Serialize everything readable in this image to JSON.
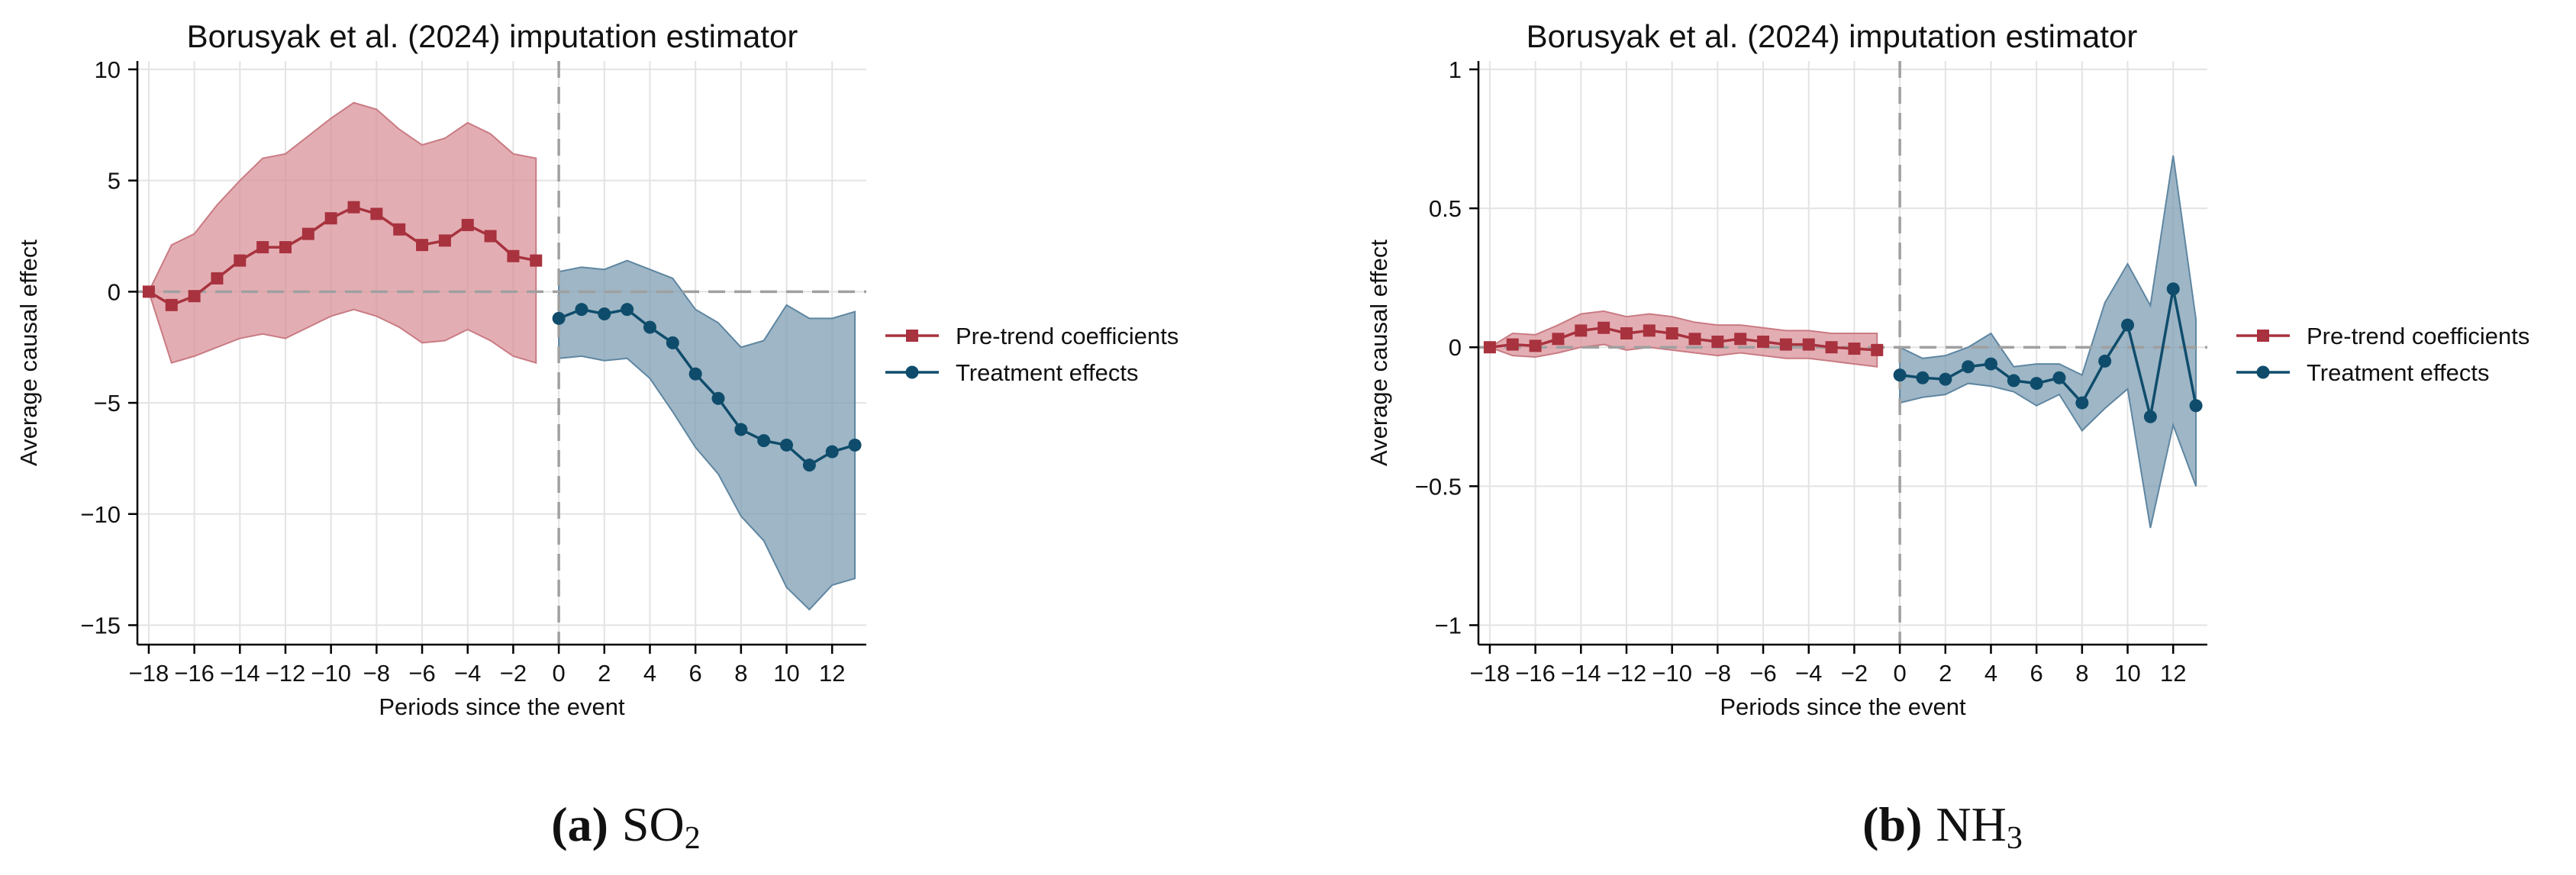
{
  "colors": {
    "pre": "#a8323e",
    "pre_fill": "#d9939a",
    "pre_edge": "#c97b83",
    "post": "#0f4c6b",
    "post_fill": "#7d9db3",
    "post_edge": "#5f86a1",
    "axis": "#000000",
    "grid": "#e3e3e3",
    "ref_line": "#a0a0a0"
  },
  "chart_data": [
    {
      "type": "line",
      "title": "Borusyak et al. (2024) imputation estimator",
      "xlabel": "Periods since the event",
      "ylabel": "Average causal effect",
      "xlim": [
        -18,
        13
      ],
      "ylim": [
        -15,
        10
      ],
      "xticks": [
        -18,
        -16,
        -14,
        -12,
        -10,
        -8,
        -6,
        -4,
        -2,
        0,
        2,
        4,
        6,
        8,
        10,
        12
      ],
      "xtick_labels": [
        "−18",
        "−16",
        "−14",
        "−12",
        "−10",
        "−8",
        "−6",
        "−4",
        "−2",
        "0",
        "2",
        "4",
        "6",
        "8",
        "10",
        "12"
      ],
      "yticks": [
        10,
        5,
        0,
        -5,
        -10,
        -15
      ],
      "ytick_labels": [
        "10",
        "5",
        "0",
        "−5",
        "−10",
        "−15"
      ],
      "vline_x": 0,
      "hline_y": 0,
      "grid": true,
      "legend_position": "right",
      "caption_letter": "(a)",
      "caption_main": "SO",
      "caption_sub": "2",
      "series": [
        {
          "name": "Pre-trend coefficients",
          "role": "pre",
          "marker": "square",
          "x": [
            -18,
            -17,
            -16,
            -15,
            -14,
            -13,
            -12,
            -11,
            -10,
            -9,
            -8,
            -7,
            -6,
            -5,
            -4,
            -3,
            -2,
            -1
          ],
          "y": [
            0,
            -0.6,
            -0.2,
            0.6,
            1.4,
            2.0,
            2.0,
            2.6,
            3.3,
            3.8,
            3.5,
            2.8,
            2.1,
            2.3,
            3.0,
            2.5,
            1.6,
            1.4
          ],
          "lower": [
            0,
            -3.2,
            -2.9,
            -2.5,
            -2.1,
            -1.9,
            -2.1,
            -1.6,
            -1.1,
            -0.8,
            -1.1,
            -1.6,
            -2.3,
            -2.2,
            -1.7,
            -2.2,
            -2.9,
            -3.2
          ],
          "upper": [
            0,
            2.1,
            2.6,
            3.9,
            5.0,
            6.0,
            6.2,
            7.0,
            7.8,
            8.5,
            8.2,
            7.3,
            6.6,
            6.9,
            7.6,
            7.1,
            6.2,
            6.0
          ]
        },
        {
          "name": "Treatment effects",
          "role": "post",
          "marker": "circle",
          "x": [
            0,
            1,
            2,
            3,
            4,
            5,
            6,
            7,
            8,
            9,
            10,
            11,
            12,
            13
          ],
          "y": [
            -1.2,
            -0.8,
            -1.0,
            -0.8,
            -1.6,
            -2.3,
            -3.7,
            -4.8,
            -6.2,
            -6.7,
            -6.9,
            -7.8,
            -7.2,
            -6.9
          ],
          "lower": [
            -3.0,
            -2.9,
            -3.1,
            -3.0,
            -3.9,
            -5.4,
            -7.0,
            -8.2,
            -10.1,
            -11.2,
            -13.3,
            -14.3,
            -13.2,
            -12.9
          ],
          "upper": [
            0.9,
            1.1,
            1.0,
            1.4,
            1.0,
            0.6,
            -0.8,
            -1.4,
            -2.5,
            -2.2,
            -0.6,
            -1.2,
            -1.2,
            -0.9
          ]
        }
      ]
    },
    {
      "type": "line",
      "title": "Borusyak et al. (2024) imputation estimator",
      "xlabel": "Periods since the event",
      "ylabel": "Average causal effect",
      "xlim": [
        -18,
        13
      ],
      "ylim": [
        -1,
        1
      ],
      "xticks": [
        -18,
        -16,
        -14,
        -12,
        -10,
        -8,
        -6,
        -4,
        -2,
        0,
        2,
        4,
        6,
        8,
        10,
        12
      ],
      "xtick_labels": [
        "−18",
        "−16",
        "−14",
        "−12",
        "−10",
        "−8",
        "−6",
        "−4",
        "−2",
        "0",
        "2",
        "4",
        "6",
        "8",
        "10",
        "12"
      ],
      "yticks": [
        1,
        0.5,
        0,
        -0.5,
        -1
      ],
      "ytick_labels": [
        "1",
        "0.5",
        "0",
        "−0.5",
        "−1"
      ],
      "vline_x": 0,
      "hline_y": 0,
      "grid": true,
      "legend_position": "right",
      "caption_letter": "(b)",
      "caption_main": "NH",
      "caption_sub": "3",
      "series": [
        {
          "name": "Pre-trend coefficients",
          "role": "pre",
          "marker": "square",
          "x": [
            -18,
            -17,
            -16,
            -15,
            -14,
            -13,
            -12,
            -11,
            -10,
            -9,
            -8,
            -7,
            -6,
            -5,
            -4,
            -3,
            -2,
            -1
          ],
          "y": [
            0,
            0.01,
            0.005,
            0.03,
            0.06,
            0.07,
            0.05,
            0.06,
            0.05,
            0.03,
            0.02,
            0.03,
            0.02,
            0.01,
            0.01,
            0.0,
            -0.005,
            -0.01
          ],
          "lower": [
            0,
            -0.03,
            -0.035,
            -0.02,
            0.0,
            0.01,
            -0.01,
            0.0,
            -0.01,
            -0.02,
            -0.03,
            -0.02,
            -0.03,
            -0.04,
            -0.04,
            -0.05,
            -0.06,
            -0.07
          ],
          "upper": [
            0,
            0.05,
            0.045,
            0.08,
            0.12,
            0.13,
            0.11,
            0.12,
            0.11,
            0.09,
            0.08,
            0.08,
            0.07,
            0.06,
            0.06,
            0.05,
            0.05,
            0.05
          ]
        },
        {
          "name": "Treatment effects",
          "role": "post",
          "marker": "circle",
          "x": [
            0,
            1,
            2,
            3,
            4,
            5,
            6,
            7,
            8,
            9,
            10,
            11,
            12,
            13
          ],
          "y": [
            -0.1,
            -0.11,
            -0.115,
            -0.07,
            -0.06,
            -0.12,
            -0.13,
            -0.11,
            -0.2,
            -0.05,
            0.08,
            -0.25,
            0.21,
            -0.21
          ],
          "lower": [
            -0.2,
            -0.18,
            -0.17,
            -0.13,
            -0.14,
            -0.16,
            -0.21,
            -0.17,
            -0.3,
            -0.22,
            -0.15,
            -0.65,
            -0.28,
            -0.5
          ],
          "upper": [
            0.0,
            -0.04,
            -0.03,
            0.0,
            0.05,
            -0.07,
            -0.06,
            -0.06,
            -0.1,
            0.16,
            0.3,
            0.15,
            0.69,
            0.1
          ]
        }
      ]
    }
  ]
}
